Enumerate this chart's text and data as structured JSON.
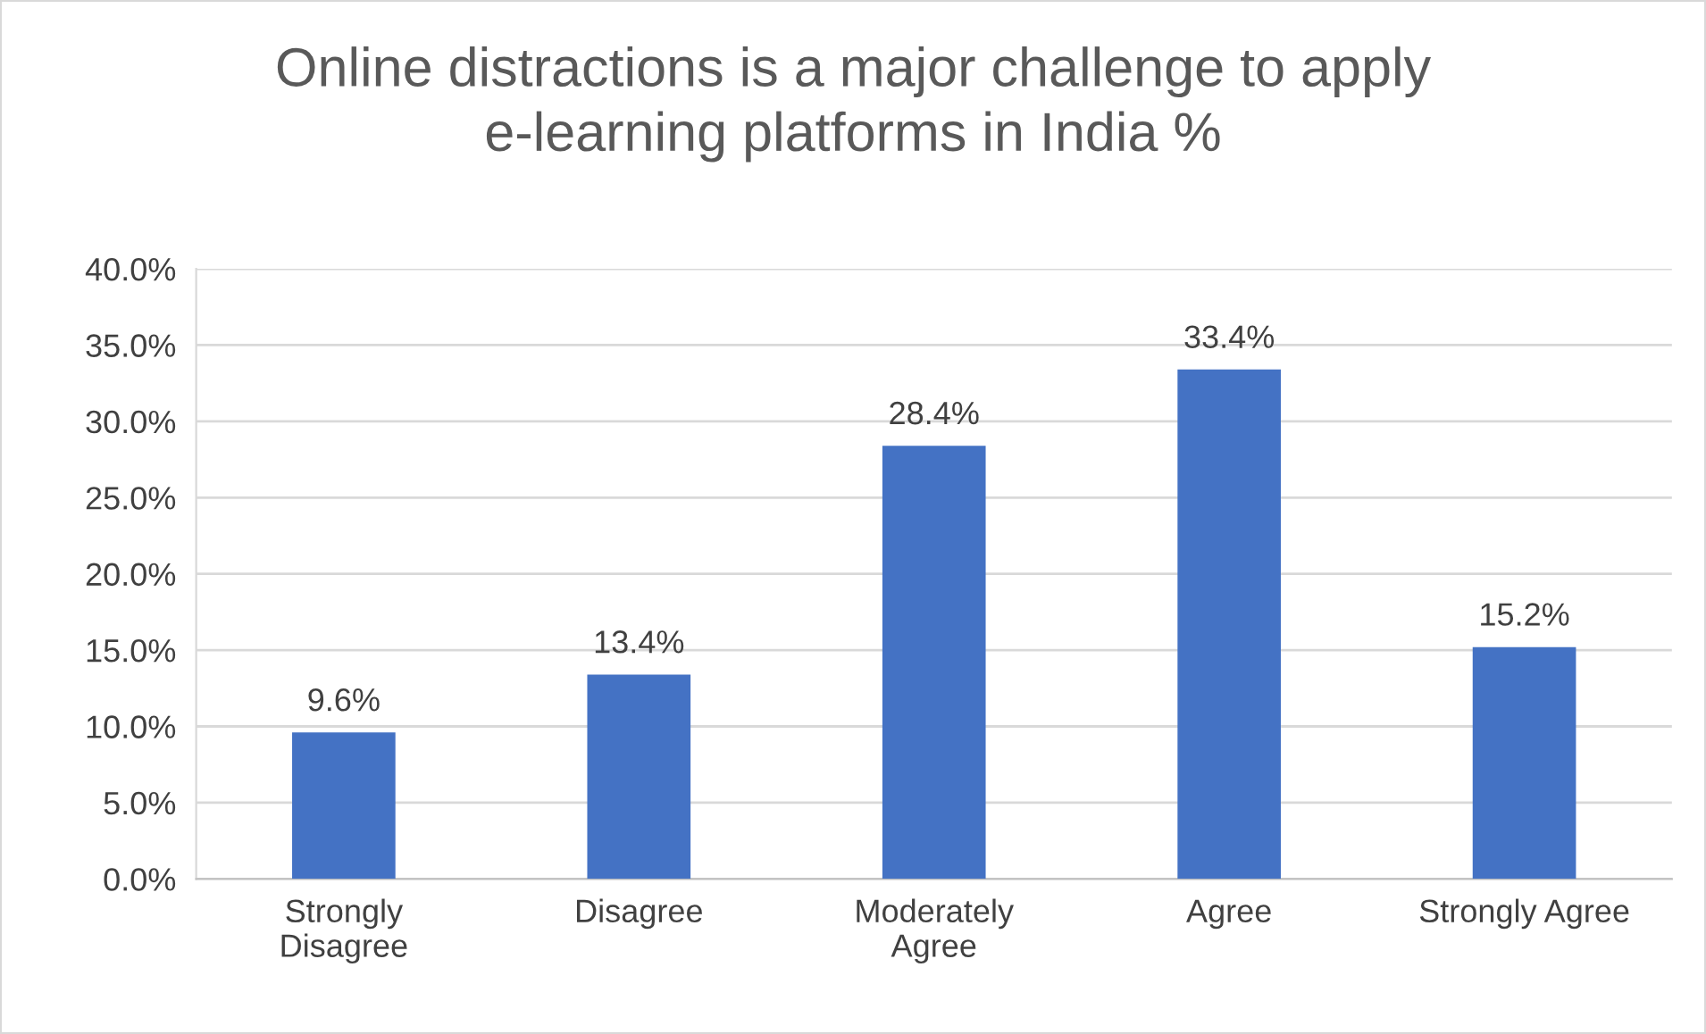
{
  "chart_data": {
    "type": "bar",
    "title": "Online distractions is a major challenge to apply\ne-learning platforms in India %",
    "categories": [
      "Strongly\nDisagree",
      "Disagree",
      "Moderately\nAgree",
      "Agree",
      "Strongly Agree"
    ],
    "values": [
      9.6,
      13.4,
      28.4,
      33.4,
      15.2
    ],
    "value_labels": [
      "9.6%",
      "13.4%",
      "28.4%",
      "33.4%",
      "15.2%"
    ],
    "color": "#4472c4",
    "ylim": [
      0,
      40
    ],
    "yticks": [
      {
        "value": 0,
        "label": "0.0%"
      },
      {
        "value": 5,
        "label": "5.0%"
      },
      {
        "value": 10,
        "label": "10.0%"
      },
      {
        "value": 15,
        "label": "15.0%"
      },
      {
        "value": 20,
        "label": "20.0%"
      },
      {
        "value": 25,
        "label": "25.0%"
      },
      {
        "value": 30,
        "label": "30.0%"
      },
      {
        "value": 35,
        "label": "35.0%"
      },
      {
        "value": 40,
        "label": "40.0%"
      }
    ],
    "grid": "y",
    "legend": false
  }
}
